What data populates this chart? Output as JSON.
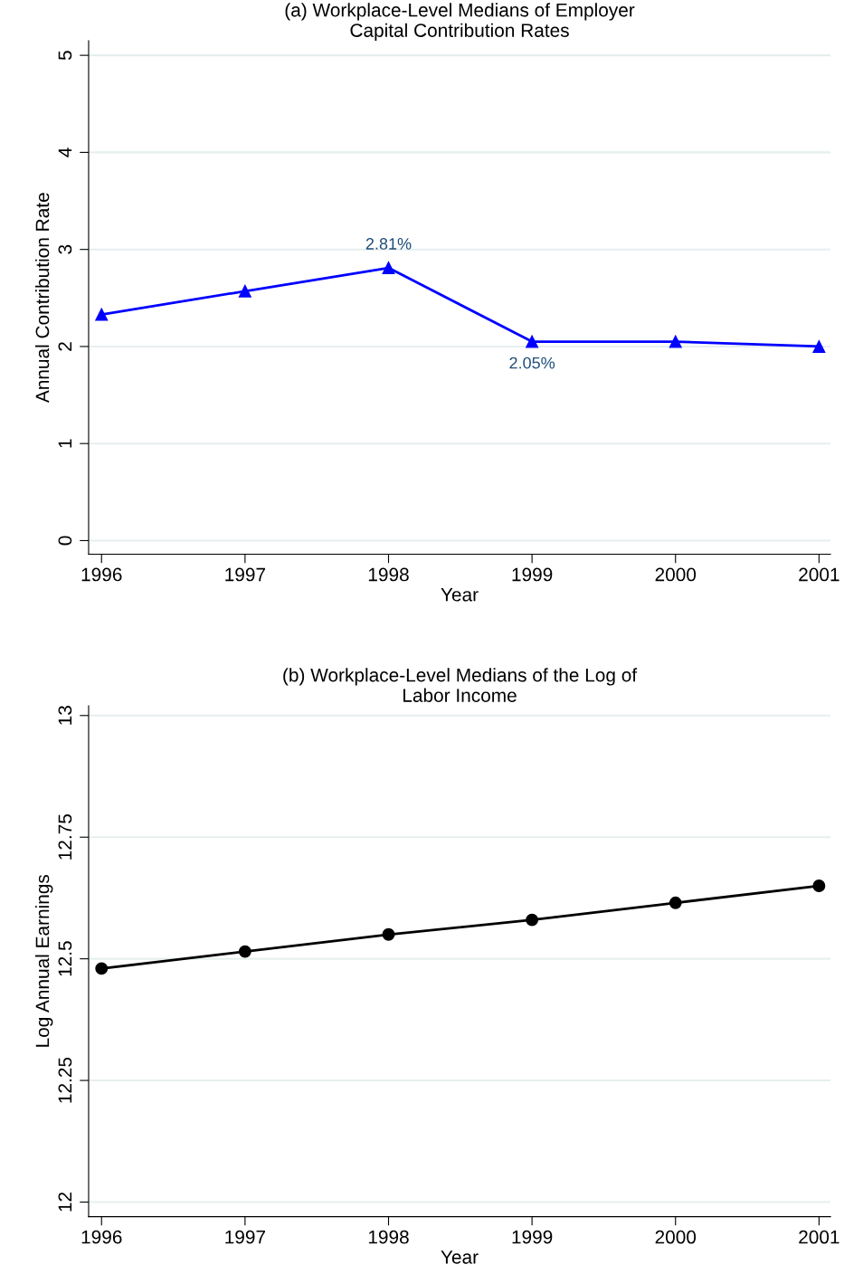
{
  "chart_data": [
    {
      "type": "line",
      "title": "(a) Workplace-Level Medians of Employer\nCapital Contribution Rates",
      "xlabel": "Year",
      "ylabel": "Annual Contribution Rate",
      "x": [
        1996,
        1997,
        1998,
        1999,
        2000,
        2001
      ],
      "series": [
        {
          "color": "#0000ff",
          "values": [
            2.33,
            2.57,
            2.81,
            2.05,
            2.05,
            2.0
          ]
        }
      ],
      "marker": "triangle",
      "line_style": "solid",
      "xlim": [
        1995.91,
        2001.08
      ],
      "xticks": [
        1996,
        1997,
        1998,
        1999,
        2000,
        2001
      ],
      "ylim": [
        -0.14,
        5.15
      ],
      "yticks": [
        0,
        1,
        2,
        3,
        4,
        5
      ],
      "grid": "y",
      "legend": false,
      "annotations": [
        {
          "text": "2.81%",
          "x": 1998,
          "y": 2.81
        },
        {
          "text": "2.05%",
          "x": 1999,
          "y": 2.05
        }
      ]
    },
    {
      "type": "line",
      "title": "(b) Workplace-Level Medians of the Log of\nLabor Income",
      "xlabel": "Year",
      "ylabel": "Log Annual Earnings",
      "x": [
        1996,
        1997,
        1998,
        1999,
        2000,
        2001
      ],
      "series": [
        {
          "color": "#000000",
          "values": [
            12.48,
            12.515,
            12.55,
            12.58,
            12.615,
            12.65
          ]
        }
      ],
      "marker": "circle",
      "line_style": "solid",
      "xlim": [
        1995.91,
        2001.08
      ],
      "xticks": [
        1996,
        1997,
        1998,
        1999,
        2000,
        2001
      ],
      "ylim": [
        11.97,
        13.02
      ],
      "yticks": [
        12,
        12.25,
        12.5,
        12.75,
        13
      ],
      "grid": "y",
      "legend": false
    }
  ]
}
